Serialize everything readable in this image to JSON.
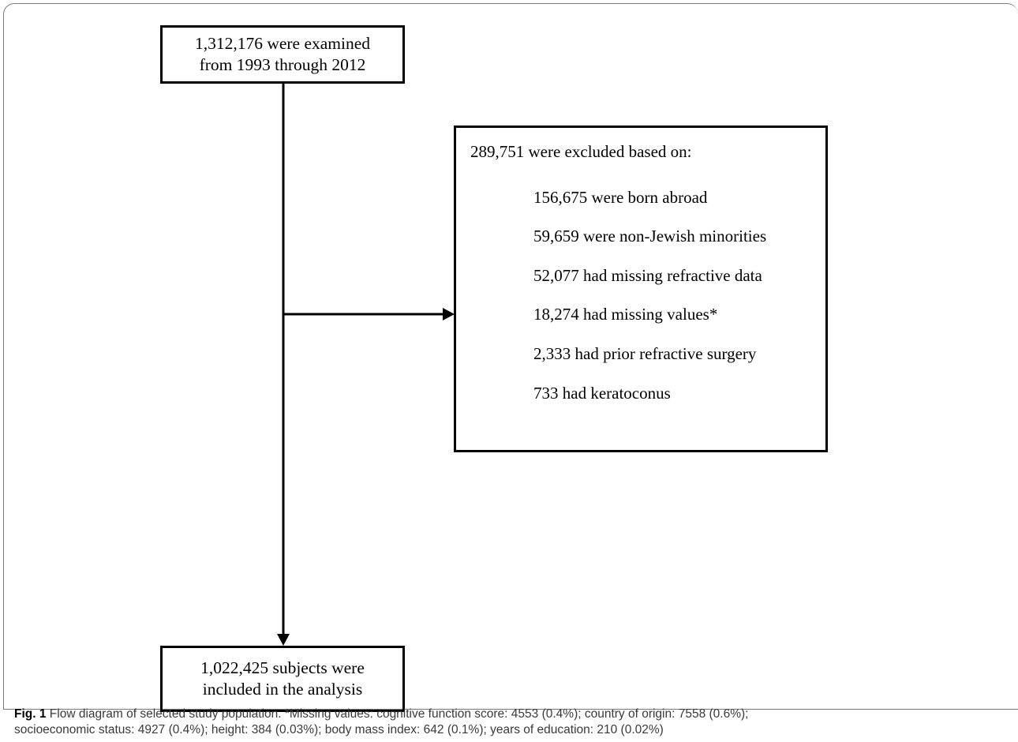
{
  "flow": {
    "top_box": {
      "line1": "1,312,176 were examined",
      "line2": "from 1993 through 2012"
    },
    "exclusion_box": {
      "heading": "289,751 were excluded based on:",
      "items": [
        "156,675 were born abroad",
        "59,659 were non-Jewish minorities",
        "52,077 had missing refractive data",
        "18,274 had missing values*",
        "2,333 had prior refractive surgery",
        "733 had keratoconus"
      ]
    },
    "bottom_box": {
      "line1": "1,022,425 subjects were",
      "line2": "included in the analysis"
    }
  },
  "caption": {
    "label": "Fig. 1",
    "line1": " Flow diagram of selected study population. *Missing values: cognitive function score: 4553 (0.4%); country of origin: 7558 (0.6%);",
    "line2": "socioeconomic status: 4927 (0.4%); height: 384 (0.03%); body mass index: 642 (0.1%); years of education: 210 (0.02%)"
  }
}
